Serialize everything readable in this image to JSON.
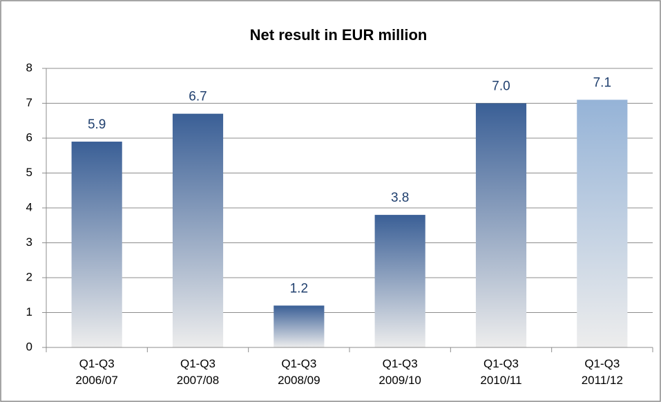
{
  "chart_data": {
    "type": "bar",
    "title": "Net result in EUR million",
    "categories": [
      "Q1-Q3\n2006/07",
      "Q1-Q3\n2007/08",
      "Q1-Q3\n2008/09",
      "Q1-Q3\n2009/10",
      "Q1-Q3\n2010/11",
      "Q1-Q3\n2011/12"
    ],
    "values": [
      5.9,
      6.7,
      1.2,
      3.8,
      7.0,
      7.1
    ],
    "value_labels": [
      "5.9",
      "6.7",
      "1.2",
      "3.8",
      "7.0",
      "7.1"
    ],
    "colors": [
      "#3a5f96",
      "#3a5f96",
      "#3a5f96",
      "#3a5f96",
      "#3a5f96",
      "#95b3d7"
    ],
    "ylim": [
      0,
      8
    ],
    "yticks": [
      0,
      1,
      2,
      3,
      4,
      5,
      6,
      7,
      8
    ],
    "grid": true
  }
}
